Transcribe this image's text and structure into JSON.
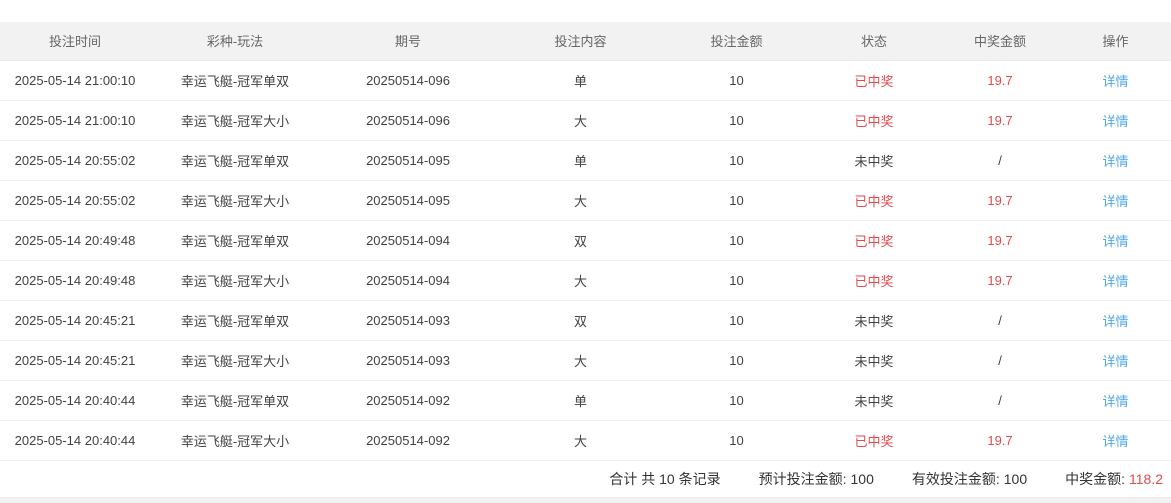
{
  "table": {
    "columns": [
      "投注时间",
      "彩种-玩法",
      "期号",
      "投注内容",
      "投注金额",
      "状态",
      "中奖金额",
      "操作"
    ],
    "action_label": "详情",
    "rows": [
      {
        "time": "2025-05-14 21:00:10",
        "game": "幸运飞艇-冠军单双",
        "period": "20250514-096",
        "content": "单",
        "amount": "10",
        "status": "已中奖",
        "prize": "19.7",
        "win": true
      },
      {
        "time": "2025-05-14 21:00:10",
        "game": "幸运飞艇-冠军大小",
        "period": "20250514-096",
        "content": "大",
        "amount": "10",
        "status": "已中奖",
        "prize": "19.7",
        "win": true
      },
      {
        "time": "2025-05-14 20:55:02",
        "game": "幸运飞艇-冠军单双",
        "period": "20250514-095",
        "content": "单",
        "amount": "10",
        "status": "未中奖",
        "prize": "/",
        "win": false
      },
      {
        "time": "2025-05-14 20:55:02",
        "game": "幸运飞艇-冠军大小",
        "period": "20250514-095",
        "content": "大",
        "amount": "10",
        "status": "已中奖",
        "prize": "19.7",
        "win": true
      },
      {
        "time": "2025-05-14 20:49:48",
        "game": "幸运飞艇-冠军单双",
        "period": "20250514-094",
        "content": "双",
        "amount": "10",
        "status": "已中奖",
        "prize": "19.7",
        "win": true
      },
      {
        "time": "2025-05-14 20:49:48",
        "game": "幸运飞艇-冠军大小",
        "period": "20250514-094",
        "content": "大",
        "amount": "10",
        "status": "已中奖",
        "prize": "19.7",
        "win": true
      },
      {
        "time": "2025-05-14 20:45:21",
        "game": "幸运飞艇-冠军单双",
        "period": "20250514-093",
        "content": "双",
        "amount": "10",
        "status": "未中奖",
        "prize": "/",
        "win": false
      },
      {
        "time": "2025-05-14 20:45:21",
        "game": "幸运飞艇-冠军大小",
        "period": "20250514-093",
        "content": "大",
        "amount": "10",
        "status": "未中奖",
        "prize": "/",
        "win": false
      },
      {
        "time": "2025-05-14 20:40:44",
        "game": "幸运飞艇-冠军单双",
        "period": "20250514-092",
        "content": "单",
        "amount": "10",
        "status": "未中奖",
        "prize": "/",
        "win": false
      },
      {
        "time": "2025-05-14 20:40:44",
        "game": "幸运飞艇-冠军大小",
        "period": "20250514-092",
        "content": "大",
        "amount": "10",
        "status": "已中奖",
        "prize": "19.7",
        "win": true
      }
    ]
  },
  "summary": {
    "total_text": "合计 共 10 条记录",
    "expected_label": "预计投注金额:",
    "expected_value": "100",
    "valid_label": "有效投注金额:",
    "valid_value": "100",
    "prize_label": "中奖金额:",
    "prize_value": "118.2"
  },
  "colors": {
    "win_red": "#e34a4a",
    "link_blue": "#4da6ea",
    "header_bg": "#f2f2f3",
    "header_text": "#666666",
    "body_text": "#424242"
  }
}
